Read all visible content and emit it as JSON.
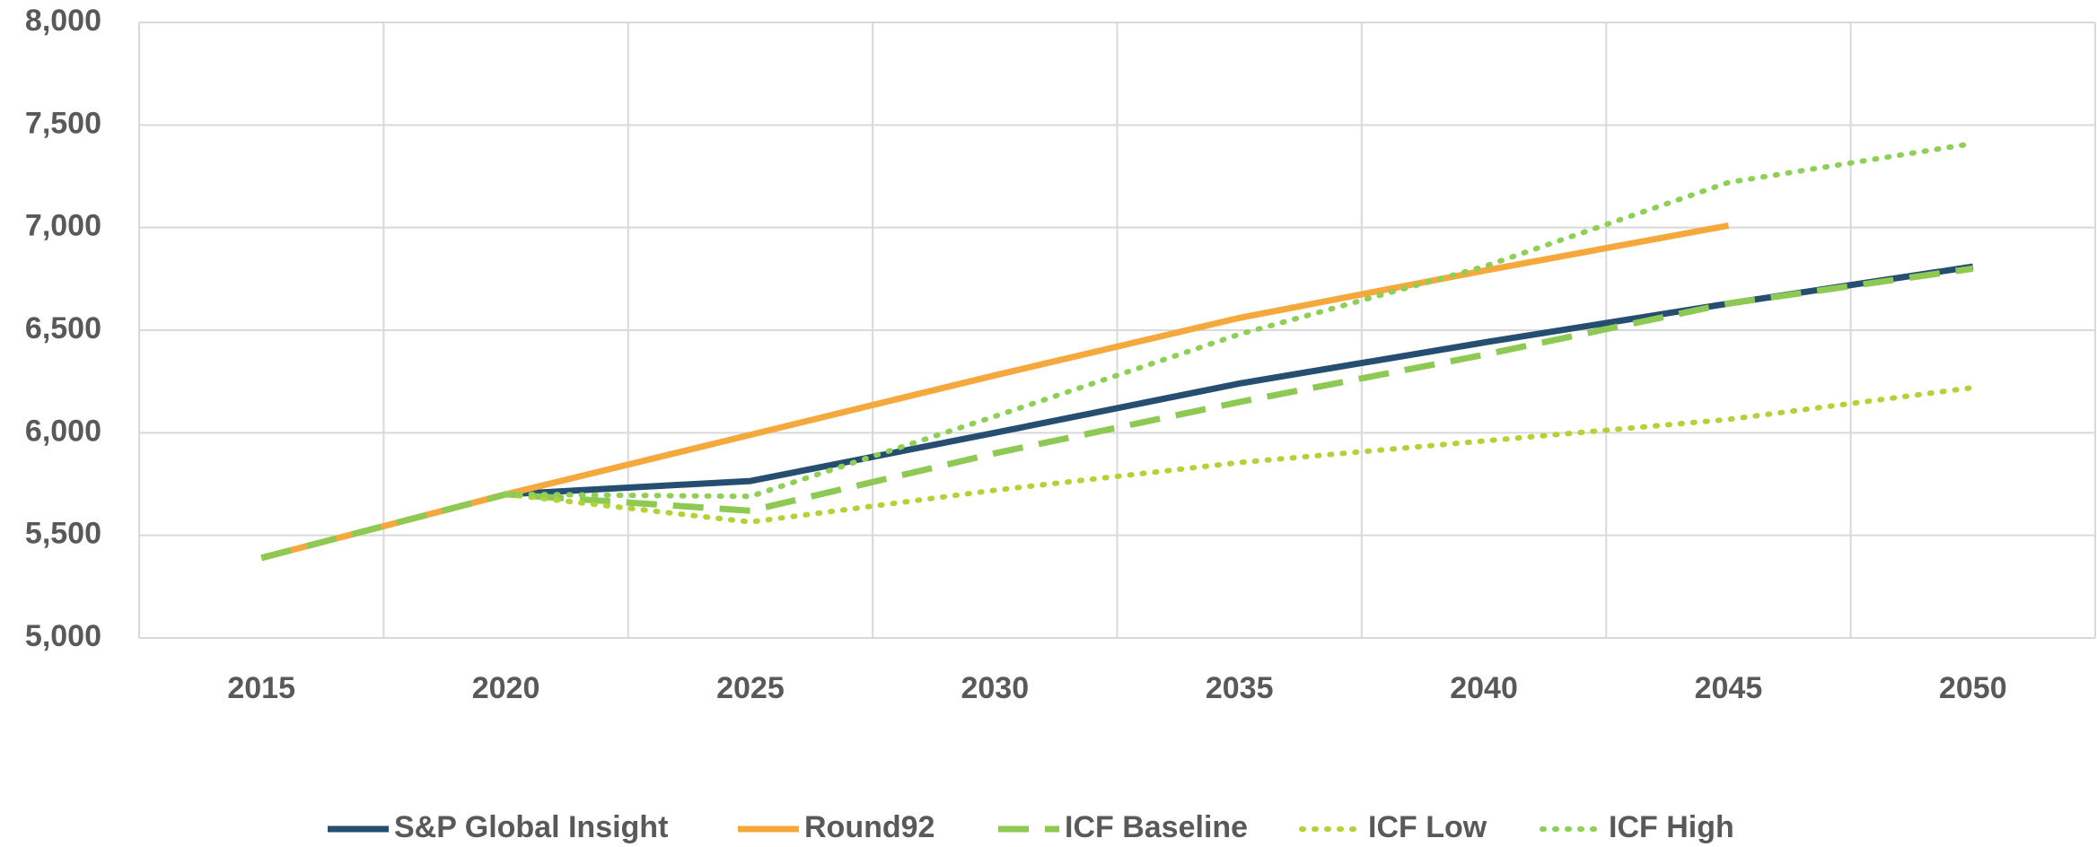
{
  "chart_data": {
    "type": "line",
    "x": [
      "2015",
      "2020",
      "2025",
      "2030",
      "2035",
      "2040",
      "2045",
      "2050"
    ],
    "ylim": [
      5000,
      8000
    ],
    "yticks": [
      {
        "value": 5000,
        "label": "5,000"
      },
      {
        "value": 5500,
        "label": "5,500"
      },
      {
        "value": 6000,
        "label": "6,000"
      },
      {
        "value": 6500,
        "label": "6,500"
      },
      {
        "value": 7000,
        "label": "7,000"
      },
      {
        "value": 7500,
        "label": "7,500"
      },
      {
        "value": 8000,
        "label": "8,000"
      }
    ],
    "grid": true,
    "legend": "bottom",
    "series": [
      {
        "name": "S&P Global Insight",
        "color": "#264e70",
        "dash": "solid",
        "values": [
          null,
          5700,
          5765,
          6000,
          6240,
          6440,
          6630,
          6810
        ]
      },
      {
        "name": "Round92",
        "color": "#f5a83b",
        "dash": "solid",
        "values": [
          5390,
          5700,
          5990,
          6280,
          6560,
          6790,
          7010,
          null
        ]
      },
      {
        "name": "ICF Baseline",
        "color": "#8dc953",
        "dash": "dash",
        "values": [
          5390,
          5700,
          5620,
          5900,
          6150,
          6380,
          6630,
          6800
        ]
      },
      {
        "name": "ICF Low",
        "color": "#b2d235",
        "dash": "dot",
        "values": [
          null,
          5700,
          5565,
          5720,
          5855,
          5960,
          6065,
          6220
        ]
      },
      {
        "name": "ICF High",
        "color": "#8ecf55",
        "dash": "dot",
        "values": [
          null,
          5700,
          5690,
          6080,
          6480,
          6810,
          7220,
          7410
        ]
      }
    ]
  }
}
